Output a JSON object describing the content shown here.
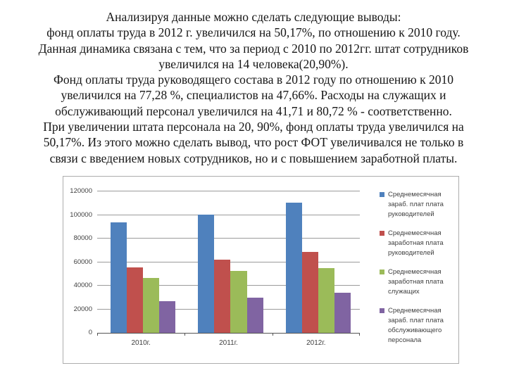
{
  "slide": {
    "text_lines": [
      "Анализируя данные можно сделать следующие выводы:",
      "фонд оплаты труда в 2012 г. увеличился на 50,17%, по отношению к 2010 году.",
      "Данная динамика связана с тем, что за период с 2010 по 2012гг. штат сотрудников",
      "увеличился на 14 человека(20,90%).",
      "Фонд оплаты труда руководящего состава в 2012 году по отношению к 2010",
      "увеличился на 77,28 %, специалистов на 47,66%. Расходы на служащих и",
      "обслуживающий персонал увеличился на 41,71 и 80,72 % - соответственно.",
      "При увеличении штата персонала на 20, 90%, фонд оплаты труда увеличился на",
      "50,17%. Из этого можно сделать вывод, что рост ФОТ увеличивался не только в",
      "связи с введением новых сотрудников, но и с повышением заработной платы."
    ]
  },
  "chart_data": {
    "type": "bar",
    "title": "",
    "xlabel": "",
    "ylabel": "",
    "categories": [
      "2010г.",
      "2011г.",
      "2012г."
    ],
    "series": [
      {
        "name": "Среднемесячная зараб. плат плата руководителей",
        "legend_lines": "Среднемесячная\nзараб. плат плата\nруководителей",
        "color": "#4F81BD",
        "values": [
          93500,
          100500,
          110500
        ]
      },
      {
        "name": "Среднемесячная заработная плата руководителей",
        "legend_lines": "Среднемесячная\nзаработная плата\nруководителей",
        "color": "#C0504D",
        "values": [
          55500,
          62000,
          68500
        ]
      },
      {
        "name": "Среднемесячная заработная плата служащих",
        "legend_lines": "Среднемесячная\nзаработная плата\nслужащих",
        "color": "#9BBB59",
        "values": [
          46500,
          52500,
          55000
        ]
      },
      {
        "name": "Среднемесячная зараб. плат плата обслуживающего персонала",
        "legend_lines": "Среднемесячная\nзараб. плат плата\nобслуживающего\nперсонала",
        "color": "#8064A2",
        "values": [
          27000,
          30000,
          34000
        ]
      }
    ],
    "y_ticks": [
      0,
      20000,
      40000,
      60000,
      80000,
      100000,
      120000
    ],
    "ylim": [
      0,
      120000
    ],
    "grid": true,
    "legend_position": "right",
    "axis_color": "#555555",
    "gridline_color": "#9b9b9b"
  }
}
